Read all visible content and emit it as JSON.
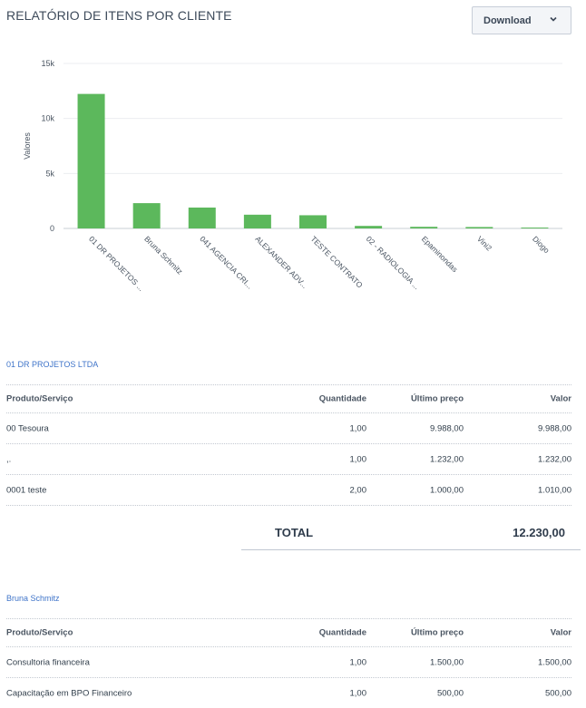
{
  "title": "RELATÓRIO DE ITENS POR CLIENTE",
  "download": {
    "label": "Download",
    "icon": "chevron-down-icon"
  },
  "chart_data": {
    "type": "bar",
    "ylabel": "Valores",
    "ylim": [
      0,
      15000
    ],
    "yticks": [
      "0",
      "5k",
      "10k",
      "15k"
    ],
    "ytick_values": [
      0,
      5000,
      10000,
      15000
    ],
    "categories": [
      "01 DR PROJETOS ...",
      "Bruna Schmitz",
      "041 AGENCIA CRI...",
      "ALEXANDER ADV...",
      "TESTE CONTRATO",
      "02 - RADIOLOGIA ...",
      "Epaminondas",
      "Vini2",
      "Diogo"
    ],
    "values": [
      12230,
      2300,
      1900,
      1250,
      1200,
      230,
      150,
      130,
      80
    ],
    "bar_color": "#5cb85c",
    "grid": true
  },
  "clients": [
    {
      "name": "01 DR PROJETOS LTDA",
      "headers": {
        "product": "Produto/Serviço",
        "qty": "Quantidade",
        "last_price": "Último preço",
        "value": "Valor"
      },
      "rows": [
        {
          "product": "00 Tesoura",
          "qty": "1,00",
          "last_price": "9.988,00",
          "value": "9.988,00"
        },
        {
          "product": ",.",
          "qty": "1,00",
          "last_price": "1.232,00",
          "value": "1.232,00"
        },
        {
          "product": "0001 teste",
          "qty": "2,00",
          "last_price": "1.000,00",
          "value": "1.010,00"
        }
      ],
      "total_label": "TOTAL",
      "total_value": "12.230,00"
    },
    {
      "name": "Bruna Schmitz",
      "headers": {
        "product": "Produto/Serviço",
        "qty": "Quantidade",
        "last_price": "Último preço",
        "value": "Valor"
      },
      "rows": [
        {
          "product": "Consultoria financeira",
          "qty": "1,00",
          "last_price": "1.500,00",
          "value": "1.500,00"
        },
        {
          "product": "Capacitação em BPO Financeiro",
          "qty": "1,00",
          "last_price": "500,00",
          "value": "500,00"
        }
      ]
    }
  ]
}
